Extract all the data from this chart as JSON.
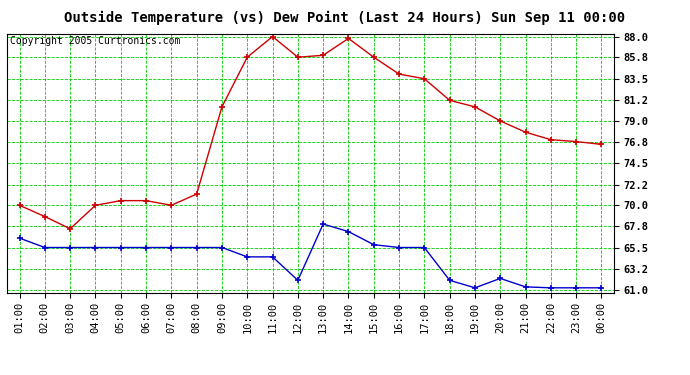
{
  "title": "Outside Temperature (vs) Dew Point (Last 24 Hours) Sun Sep 11 00:00",
  "copyright": "Copyright 2005 Curtronics.com",
  "x_labels": [
    "01:00",
    "02:00",
    "03:00",
    "04:00",
    "05:00",
    "06:00",
    "07:00",
    "08:00",
    "09:00",
    "10:00",
    "11:00",
    "12:00",
    "13:00",
    "14:00",
    "15:00",
    "16:00",
    "17:00",
    "18:00",
    "19:00",
    "20:00",
    "21:00",
    "22:00",
    "23:00",
    "00:00"
  ],
  "temp_values": [
    70.0,
    68.8,
    67.5,
    70.0,
    70.5,
    70.5,
    70.0,
    71.2,
    80.5,
    85.8,
    88.0,
    85.8,
    86.0,
    87.8,
    85.8,
    84.0,
    83.5,
    81.2,
    80.5,
    79.0,
    77.8,
    77.0,
    76.8,
    76.5
  ],
  "dew_values": [
    66.5,
    65.5,
    65.5,
    65.5,
    65.5,
    65.5,
    65.5,
    65.5,
    65.5,
    64.5,
    64.5,
    62.0,
    68.0,
    67.2,
    65.8,
    65.5,
    65.5,
    62.0,
    61.2,
    62.2,
    61.3,
    61.2,
    61.2,
    61.2
  ],
  "temp_color": "#cc0000",
  "dew_color": "#0000cc",
  "grid_color": "#00cc00",
  "bg_color": "#ffffff",
  "plot_bg_color": "#ffffff",
  "ylim_min": 61.0,
  "ylim_max": 88.0,
  "yticks": [
    61.0,
    63.2,
    65.5,
    67.8,
    70.0,
    72.2,
    74.5,
    76.8,
    79.0,
    81.2,
    83.5,
    85.8,
    88.0
  ],
  "title_fontsize": 10,
  "copyright_fontsize": 7,
  "tick_fontsize": 7.5
}
